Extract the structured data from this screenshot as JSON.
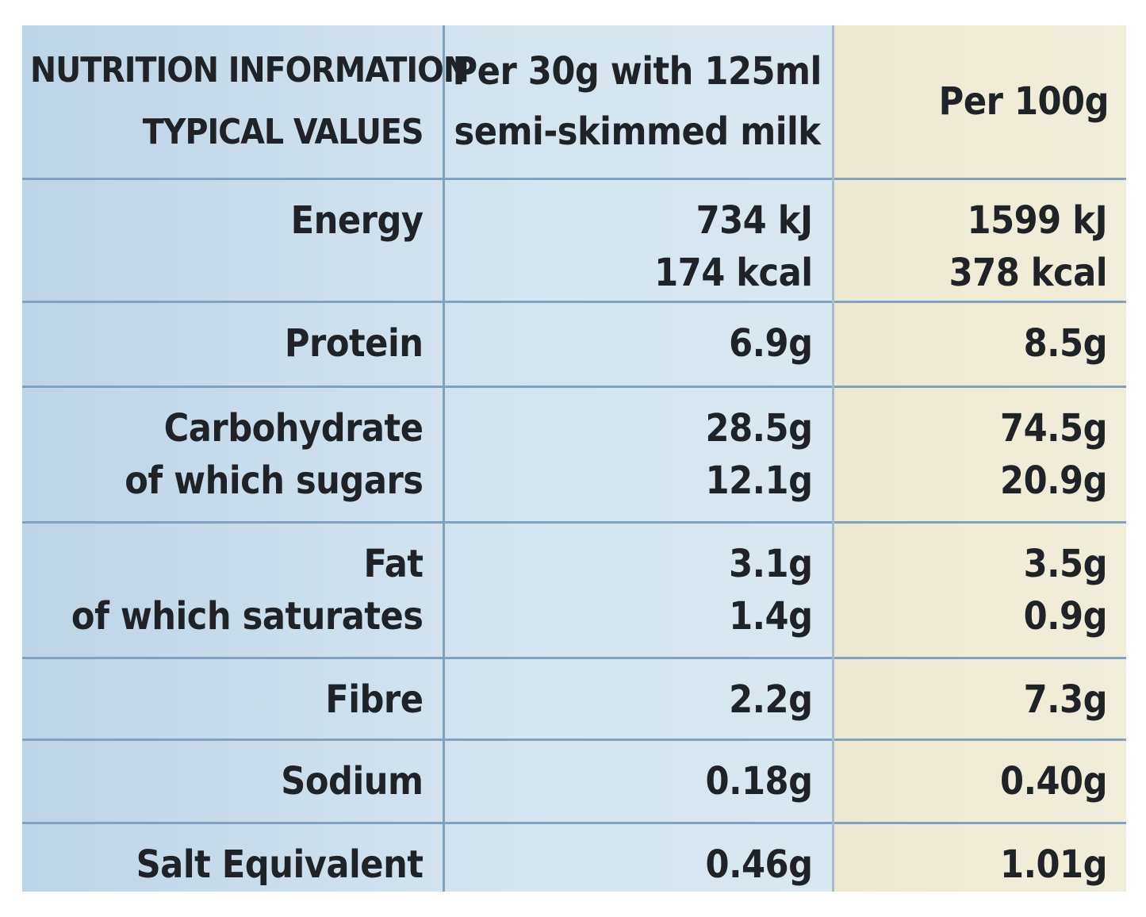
{
  "table": {
    "header": {
      "col1": [
        "NUTRITION INFORMATION",
        "TYPICAL VALUES"
      ],
      "col2": [
        "Per 30g with 125ml",
        "semi-skimmed milk"
      ],
      "col3": [
        "Per 100g"
      ]
    },
    "rows": [
      {
        "label": [
          "Energy"
        ],
        "per_serving": [
          "734 kJ",
          "174 kcal"
        ],
        "per_100g": [
          "1599 kJ",
          "378 kcal"
        ]
      },
      {
        "label": [
          "Protein"
        ],
        "per_serving": [
          "6.9g"
        ],
        "per_100g": [
          "8.5g"
        ]
      },
      {
        "label": [
          "Carbohydrate",
          "of which sugars"
        ],
        "per_serving": [
          "28.5g",
          "12.1g"
        ],
        "per_100g": [
          "74.5g",
          "20.9g"
        ]
      },
      {
        "label": [
          "Fat",
          "of which saturates"
        ],
        "per_serving": [
          "3.1g",
          "1.4g"
        ],
        "per_100g": [
          "3.5g",
          "0.9g"
        ]
      },
      {
        "label": [
          "Fibre"
        ],
        "per_serving": [
          "2.2g"
        ],
        "per_100g": [
          "7.3g"
        ]
      },
      {
        "label": [
          "Sodium"
        ],
        "per_serving": [
          "0.18g"
        ],
        "per_100g": [
          "0.40g"
        ]
      },
      {
        "label": [
          "Salt Equivalent"
        ],
        "per_serving": [
          "0.46g"
        ],
        "per_100g": [
          "1.01g"
        ]
      }
    ]
  },
  "colors": {
    "panel_blue": "#d2e3ef",
    "panel_cream": "#efebd6",
    "rule_blue": "#7fa2c0",
    "text": "#1f2226"
  }
}
